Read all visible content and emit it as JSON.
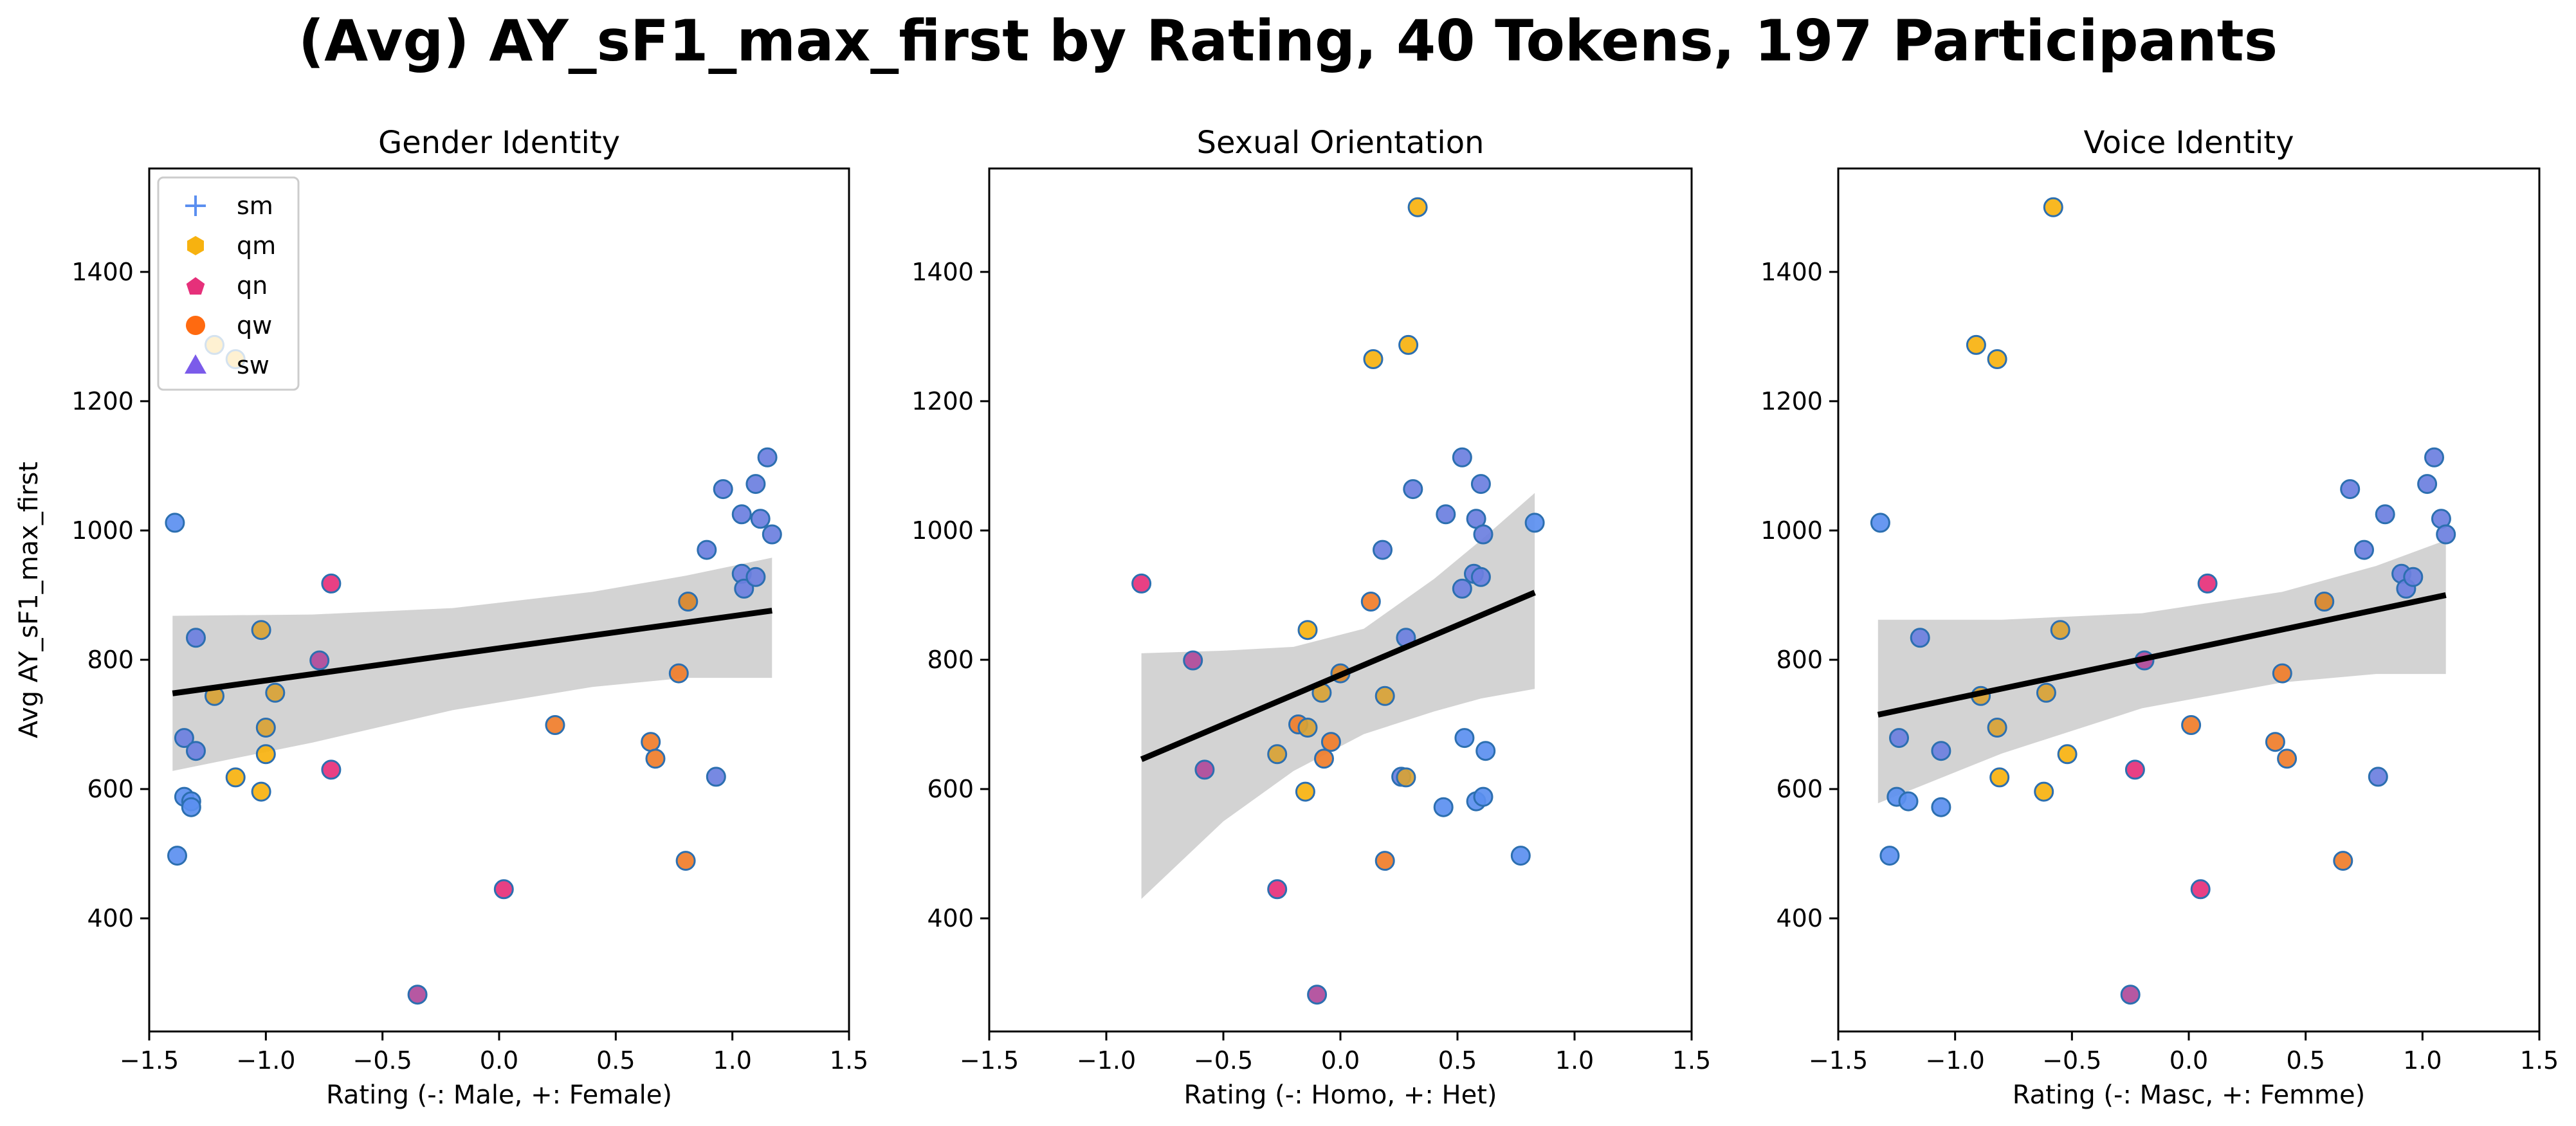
{
  "figure": {
    "title": "(Avg) AY_sF1_max_first by Rating, 40 Tokens, 197 Participants"
  },
  "legend": {
    "location": "upper-left",
    "entries": [
      {
        "label": "sm",
        "marker": "plus",
        "color": "#5b8ff0"
      },
      {
        "label": "qm",
        "marker": "hexagon",
        "color": "#f7b20f"
      },
      {
        "label": "qn",
        "marker": "pentagon",
        "color": "#e6307a"
      },
      {
        "label": "qw",
        "marker": "circle",
        "color": "#ff6a10"
      },
      {
        "label": "sw",
        "marker": "triangle",
        "color": "#7b5bea"
      }
    ]
  },
  "colors": {
    "point_edge": "#2c6fb0",
    "regression_line": "#000000",
    "confidence_band": "#d3d3d3"
  },
  "chart_data": [
    {
      "type": "scatter",
      "title": "Gender Identity",
      "xlabel": "Rating (-: Male, +: Female)",
      "ylabel": "Avg AY_sF1_max_first",
      "xlim": [
        -1.5,
        1.5
      ],
      "ylim": [
        225,
        1560
      ],
      "xticks": [
        "−1.5",
        "−1.0",
        "−0.5",
        "0.0",
        "0.5",
        "1.0",
        "1.5"
      ],
      "yticks": [
        "400",
        "600",
        "800",
        "1000",
        "1200",
        "1400"
      ],
      "grid": false,
      "has_legend": true,
      "regression": {
        "x": [
          -1.4,
          1.17
        ],
        "y": [
          748,
          876
        ]
      },
      "ci_band": {
        "x": [
          -1.4,
          -0.8,
          -0.2,
          0.4,
          0.8,
          1.17
        ],
        "upper": [
          868,
          870,
          880,
          905,
          930,
          958
        ],
        "lower": [
          628,
          672,
          722,
          758,
          772,
          772
        ]
      },
      "points": [
        {
          "x": -1.39,
          "y": 1012,
          "color": "#5b8ff0"
        },
        {
          "x": -1.38,
          "y": 497,
          "color": "#5b8ff0"
        },
        {
          "x": -1.35,
          "y": 588,
          "color": "#5b8ff0"
        },
        {
          "x": -1.35,
          "y": 679,
          "color": "#6b7fe0"
        },
        {
          "x": -1.32,
          "y": 581,
          "color": "#5b8ff0"
        },
        {
          "x": -1.32,
          "y": 572,
          "color": "#5b8ff0"
        },
        {
          "x": -1.3,
          "y": 834,
          "color": "#6b7fe0"
        },
        {
          "x": -1.3,
          "y": 659,
          "color": "#6b7fe0"
        },
        {
          "x": -1.22,
          "y": 1287,
          "color": "#f7b20f"
        },
        {
          "x": -1.22,
          "y": 744,
          "color": "#d8a235"
        },
        {
          "x": -1.13,
          "y": 1265,
          "color": "#f7b20f"
        },
        {
          "x": -1.13,
          "y": 618,
          "color": "#f7b20f"
        },
        {
          "x": -1.02,
          "y": 846,
          "color": "#d8a235"
        },
        {
          "x": -1.02,
          "y": 596,
          "color": "#f7b20f"
        },
        {
          "x": -1.0,
          "y": 695,
          "color": "#d8a235"
        },
        {
          "x": -1.0,
          "y": 654,
          "color": "#f7b20f"
        },
        {
          "x": -0.96,
          "y": 749,
          "color": "#d8a235"
        },
        {
          "x": -0.77,
          "y": 799,
          "color": "#b04a9a"
        },
        {
          "x": -0.72,
          "y": 918,
          "color": "#e6307a"
        },
        {
          "x": -0.72,
          "y": 630,
          "color": "#e6307a"
        },
        {
          "x": -0.35,
          "y": 282,
          "color": "#b04a9a"
        },
        {
          "x": 0.02,
          "y": 445,
          "color": "#e6307a"
        },
        {
          "x": 0.24,
          "y": 699,
          "color": "#f07d2a"
        },
        {
          "x": 0.65,
          "y": 673,
          "color": "#f07d2a"
        },
        {
          "x": 0.67,
          "y": 647,
          "color": "#f07d2a"
        },
        {
          "x": 0.77,
          "y": 779,
          "color": "#f07d2a"
        },
        {
          "x": 0.8,
          "y": 489,
          "color": "#f07d2a"
        },
        {
          "x": 0.81,
          "y": 890,
          "color": "#d8852a"
        },
        {
          "x": 0.89,
          "y": 970,
          "color": "#6b7fe0"
        },
        {
          "x": 0.93,
          "y": 619,
          "color": "#6b7fe0"
        },
        {
          "x": 0.96,
          "y": 1064,
          "color": "#6b7fe0"
        },
        {
          "x": 1.04,
          "y": 1025,
          "color": "#6b7fe0"
        },
        {
          "x": 1.04,
          "y": 933,
          "color": "#6b7fe0"
        },
        {
          "x": 1.05,
          "y": 910,
          "color": "#6b7fe0"
        },
        {
          "x": 1.1,
          "y": 928,
          "color": "#6b7fe0"
        },
        {
          "x": 1.1,
          "y": 1072,
          "color": "#6b7fe0"
        },
        {
          "x": 1.12,
          "y": 1018,
          "color": "#6b7fe0"
        },
        {
          "x": 1.15,
          "y": 1113,
          "color": "#6b7fe0"
        },
        {
          "x": 1.17,
          "y": 994,
          "color": "#6b7fe0"
        }
      ]
    },
    {
      "type": "scatter",
      "title": "Sexual Orientation",
      "xlabel": "Rating (-: Homo, +: Het)",
      "ylabel": "",
      "xlim": [
        -1.5,
        1.5
      ],
      "ylim": [
        225,
        1560
      ],
      "xticks": [
        "−1.5",
        "−1.0",
        "−0.5",
        "0.0",
        "0.5",
        "1.0",
        "1.5"
      ],
      "yticks": [
        "400",
        "600",
        "800",
        "1000",
        "1200",
        "1400"
      ],
      "grid": false,
      "has_legend": false,
      "regression": {
        "x": [
          -0.85,
          0.83
        ],
        "y": [
          646,
          904
        ]
      },
      "ci_band": {
        "x": [
          -0.85,
          -0.5,
          -0.2,
          0.1,
          0.4,
          0.6,
          0.83
        ],
        "upper": [
          810,
          814,
          820,
          848,
          925,
          985,
          1058
        ],
        "lower": [
          430,
          550,
          628,
          685,
          720,
          740,
          755
        ]
      },
      "points": [
        {
          "x": -0.85,
          "y": 918,
          "color": "#e6307a"
        },
        {
          "x": -0.63,
          "y": 799,
          "color": "#b04a9a"
        },
        {
          "x": -0.58,
          "y": 630,
          "color": "#b04a9a"
        },
        {
          "x": -0.27,
          "y": 445,
          "color": "#e6307a"
        },
        {
          "x": -0.27,
          "y": 654,
          "color": "#d8a235"
        },
        {
          "x": -0.18,
          "y": 700,
          "color": "#f07d2a"
        },
        {
          "x": -0.15,
          "y": 596,
          "color": "#f7b20f"
        },
        {
          "x": -0.14,
          "y": 846,
          "color": "#f7b20f"
        },
        {
          "x": -0.14,
          "y": 695,
          "color": "#d8a235"
        },
        {
          "x": -0.1,
          "y": 282,
          "color": "#b04a9a"
        },
        {
          "x": -0.08,
          "y": 749,
          "color": "#d8a235"
        },
        {
          "x": -0.07,
          "y": 647,
          "color": "#f07d2a"
        },
        {
          "x": -0.04,
          "y": 673,
          "color": "#f07d2a"
        },
        {
          "x": 0.0,
          "y": 779,
          "color": "#d8852a"
        },
        {
          "x": 0.13,
          "y": 890,
          "color": "#f07d2a"
        },
        {
          "x": 0.14,
          "y": 1265,
          "color": "#f7b20f"
        },
        {
          "x": 0.18,
          "y": 970,
          "color": "#6b7fe0"
        },
        {
          "x": 0.19,
          "y": 744,
          "color": "#d8a235"
        },
        {
          "x": 0.19,
          "y": 489,
          "color": "#f07d2a"
        },
        {
          "x": 0.26,
          "y": 619,
          "color": "#6b7fe0"
        },
        {
          "x": 0.28,
          "y": 618,
          "color": "#d8a235"
        },
        {
          "x": 0.28,
          "y": 834,
          "color": "#6b7fe0"
        },
        {
          "x": 0.29,
          "y": 1287,
          "color": "#f7b20f"
        },
        {
          "x": 0.31,
          "y": 1064,
          "color": "#6b7fe0"
        },
        {
          "x": 0.33,
          "y": 1500,
          "color": "#f7b20f"
        },
        {
          "x": 0.44,
          "y": 572,
          "color": "#5b8ff0"
        },
        {
          "x": 0.45,
          "y": 1025,
          "color": "#6b7fe0"
        },
        {
          "x": 0.52,
          "y": 1113,
          "color": "#6b7fe0"
        },
        {
          "x": 0.52,
          "y": 910,
          "color": "#6b7fe0"
        },
        {
          "x": 0.53,
          "y": 679,
          "color": "#5b8ff0"
        },
        {
          "x": 0.57,
          "y": 933,
          "color": "#6b7fe0"
        },
        {
          "x": 0.58,
          "y": 581,
          "color": "#5b8ff0"
        },
        {
          "x": 0.58,
          "y": 1018,
          "color": "#6b7fe0"
        },
        {
          "x": 0.6,
          "y": 928,
          "color": "#6b7fe0"
        },
        {
          "x": 0.6,
          "y": 1072,
          "color": "#6b7fe0"
        },
        {
          "x": 0.61,
          "y": 994,
          "color": "#6b7fe0"
        },
        {
          "x": 0.61,
          "y": 588,
          "color": "#5b8ff0"
        },
        {
          "x": 0.62,
          "y": 659,
          "color": "#5b8ff0"
        },
        {
          "x": 0.77,
          "y": 497,
          "color": "#5b8ff0"
        },
        {
          "x": 0.83,
          "y": 1012,
          "color": "#5b8ff0"
        }
      ]
    },
    {
      "type": "scatter",
      "title": "Voice Identity",
      "xlabel": "Rating (-: Masc, +: Femme)",
      "ylabel": "",
      "xlim": [
        -1.5,
        1.5
      ],
      "ylim": [
        225,
        1560
      ],
      "xticks": [
        "−1.5",
        "−1.0",
        "−0.5",
        "0.0",
        "0.5",
        "1.0",
        "1.5"
      ],
      "yticks": [
        "400",
        "600",
        "800",
        "1000",
        "1200",
        "1400"
      ],
      "grid": false,
      "has_legend": false,
      "regression": {
        "x": [
          -1.33,
          1.1
        ],
        "y": [
          715,
          900
        ]
      },
      "ci_band": {
        "x": [
          -1.33,
          -0.8,
          -0.2,
          0.4,
          0.8,
          1.1
        ],
        "upper": [
          862,
          862,
          872,
          905,
          945,
          985
        ],
        "lower": [
          578,
          655,
          725,
          765,
          778,
          778
        ]
      },
      "points": [
        {
          "x": -1.32,
          "y": 1012,
          "color": "#5b8ff0"
        },
        {
          "x": -1.28,
          "y": 497,
          "color": "#5b8ff0"
        },
        {
          "x": -1.25,
          "y": 588,
          "color": "#5b8ff0"
        },
        {
          "x": -1.24,
          "y": 679,
          "color": "#6b7fe0"
        },
        {
          "x": -1.2,
          "y": 581,
          "color": "#5b8ff0"
        },
        {
          "x": -1.15,
          "y": 834,
          "color": "#6b7fe0"
        },
        {
          "x": -1.06,
          "y": 572,
          "color": "#5b8ff0"
        },
        {
          "x": -1.06,
          "y": 659,
          "color": "#6b7fe0"
        },
        {
          "x": -0.91,
          "y": 1287,
          "color": "#f7b20f"
        },
        {
          "x": -0.89,
          "y": 744,
          "color": "#d8a235"
        },
        {
          "x": -0.82,
          "y": 1265,
          "color": "#f7b20f"
        },
        {
          "x": -0.82,
          "y": 695,
          "color": "#d8a235"
        },
        {
          "x": -0.81,
          "y": 618,
          "color": "#f7b20f"
        },
        {
          "x": -0.62,
          "y": 596,
          "color": "#f7b20f"
        },
        {
          "x": -0.61,
          "y": 749,
          "color": "#d8a235"
        },
        {
          "x": -0.58,
          "y": 1500,
          "color": "#f7b20f"
        },
        {
          "x": -0.55,
          "y": 846,
          "color": "#d8a235"
        },
        {
          "x": -0.52,
          "y": 654,
          "color": "#f7b20f"
        },
        {
          "x": -0.25,
          "y": 282,
          "color": "#b04a9a"
        },
        {
          "x": -0.23,
          "y": 630,
          "color": "#e6307a"
        },
        {
          "x": -0.19,
          "y": 799,
          "color": "#b04a9a"
        },
        {
          "x": 0.01,
          "y": 699,
          "color": "#f07d2a"
        },
        {
          "x": 0.05,
          "y": 445,
          "color": "#e6307a"
        },
        {
          "x": 0.08,
          "y": 918,
          "color": "#e6307a"
        },
        {
          "x": 0.37,
          "y": 673,
          "color": "#f07d2a"
        },
        {
          "x": 0.4,
          "y": 779,
          "color": "#f07d2a"
        },
        {
          "x": 0.42,
          "y": 647,
          "color": "#f07d2a"
        },
        {
          "x": 0.58,
          "y": 890,
          "color": "#d8852a"
        },
        {
          "x": 0.66,
          "y": 489,
          "color": "#f07d2a"
        },
        {
          "x": 0.69,
          "y": 1064,
          "color": "#6b7fe0"
        },
        {
          "x": 0.75,
          "y": 970,
          "color": "#6b7fe0"
        },
        {
          "x": 0.81,
          "y": 619,
          "color": "#6b7fe0"
        },
        {
          "x": 0.84,
          "y": 1025,
          "color": "#6b7fe0"
        },
        {
          "x": 0.91,
          "y": 933,
          "color": "#6b7fe0"
        },
        {
          "x": 0.93,
          "y": 910,
          "color": "#6b7fe0"
        },
        {
          "x": 0.96,
          "y": 928,
          "color": "#6b7fe0"
        },
        {
          "x": 1.02,
          "y": 1072,
          "color": "#6b7fe0"
        },
        {
          "x": 1.05,
          "y": 1113,
          "color": "#6b7fe0"
        },
        {
          "x": 1.08,
          "y": 1018,
          "color": "#6b7fe0"
        },
        {
          "x": 1.1,
          "y": 994,
          "color": "#6b7fe0"
        }
      ]
    }
  ]
}
